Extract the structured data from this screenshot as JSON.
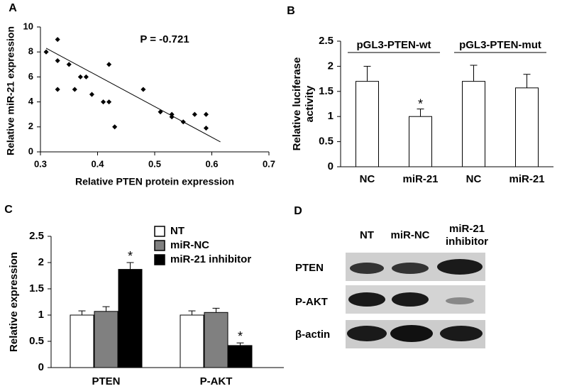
{
  "chart_data": [
    {
      "panel": "A",
      "type": "scatter",
      "xlabel": "Relative PTEN protein expression",
      "ylabel": "Relative miR-21 expression",
      "annotation": "P = -0.721",
      "x": [
        0.31,
        0.33,
        0.33,
        0.33,
        0.35,
        0.36,
        0.37,
        0.38,
        0.39,
        0.41,
        0.42,
        0.42,
        0.43,
        0.48,
        0.51,
        0.53,
        0.53,
        0.55,
        0.57,
        0.59,
        0.59
      ],
      "values": [
        8.0,
        9.0,
        7.3,
        5.0,
        7.0,
        5.0,
        6.0,
        6.0,
        4.6,
        4.0,
        4.0,
        7.0,
        2.0,
        5.0,
        3.2,
        3.0,
        2.8,
        2.4,
        3.0,
        3.0,
        1.9
      ],
      "trendline": {
        "x": [
          0.31,
          0.615
        ],
        "values": [
          8.3,
          0.8
        ]
      },
      "color": "#000000",
      "xlim": [
        0.3,
        0.7
      ],
      "xticks": [
        0.3,
        0.4,
        0.5,
        0.6,
        0.7
      ],
      "ylim": [
        0,
        10
      ],
      "yticks": [
        0,
        2,
        4,
        6,
        8,
        10
      ]
    },
    {
      "panel": "B",
      "type": "bar",
      "ylabel": "Relative luciferase activity",
      "groups": [
        "pGL3-PTEN-wt",
        "pGL3-PTEN-mut"
      ],
      "categories": [
        "NC",
        "miR-21",
        "NC",
        "miR-21"
      ],
      "values": [
        1.7,
        1.0,
        1.7,
        1.57
      ],
      "errors": [
        0.3,
        0.15,
        0.32,
        0.27
      ],
      "significance": [
        null,
        "*",
        null,
        null
      ],
      "color": "#ffffff",
      "ylim": [
        0,
        2.5
      ],
      "yticks": [
        0,
        0.5,
        1,
        1.5,
        2,
        2.5
      ]
    },
    {
      "panel": "C",
      "type": "grouped_bar",
      "ylabel": "Relative expression",
      "categories": [
        "PTEN",
        "P-AKT"
      ],
      "legend": "top",
      "series": [
        {
          "name": "NT",
          "color": "#ffffff",
          "values": [
            1.0,
            1.0
          ],
          "errors": [
            0.08,
            0.08
          ],
          "significance": [
            null,
            null
          ]
        },
        {
          "name": "miR-NC",
          "color": "#808080",
          "values": [
            1.07,
            1.05
          ],
          "errors": [
            0.09,
            0.08
          ],
          "significance": [
            null,
            null
          ]
        },
        {
          "name": "miR-21 inhibitor",
          "color": "#000000",
          "values": [
            1.87,
            0.42
          ],
          "errors": [
            0.13,
            0.05
          ],
          "significance": [
            "*",
            "*"
          ]
        }
      ],
      "ylim": [
        0,
        2.5
      ],
      "yticks": [
        0,
        0.5,
        1,
        1.5,
        2,
        2.5
      ]
    }
  ],
  "blot": {
    "panel": "D",
    "columns": [
      "NT",
      "miR-NC",
      "miR-21 inhibitor"
    ],
    "rows": [
      "PTEN",
      "P-AKT",
      "β-actin"
    ]
  }
}
